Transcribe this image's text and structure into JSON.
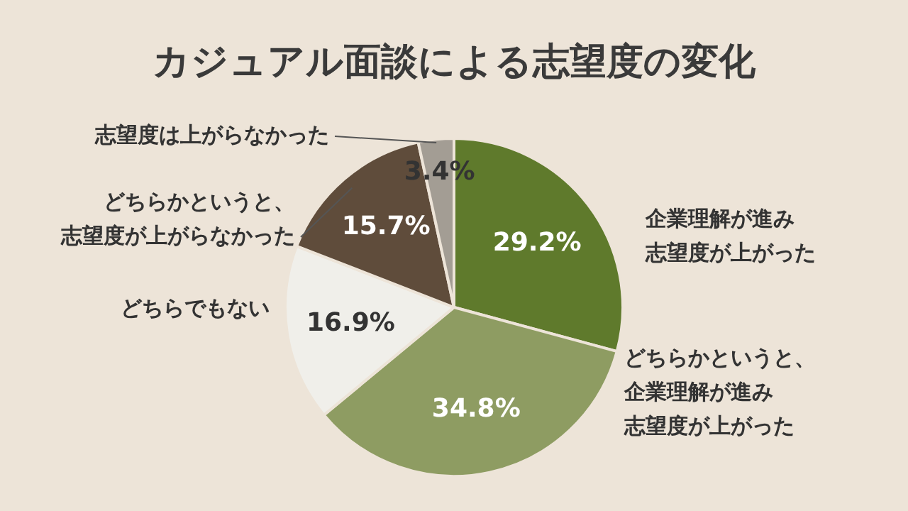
{
  "chart_data": {
    "type": "pie",
    "title": "カジュアル面談による志望度の変化",
    "categories": [
      "企業理解が進み志望度が上がった",
      "どちらかというと、企業理解が進み志望度が上がった",
      "どちらでもない",
      "どちらかというと、志望度が上がらなかった",
      "志望度は上がらなかった"
    ],
    "values": [
      29.2,
      34.8,
      16.9,
      15.7,
      3.4
    ],
    "value_labels": [
      "29.2%",
      "34.8%",
      "16.9%",
      "15.7%",
      "3.4%"
    ],
    "colors": [
      "#5f7a2c",
      "#8e9c62",
      "#f0efea",
      "#5f4c3b",
      "#a39d94"
    ],
    "legend": false
  }
}
